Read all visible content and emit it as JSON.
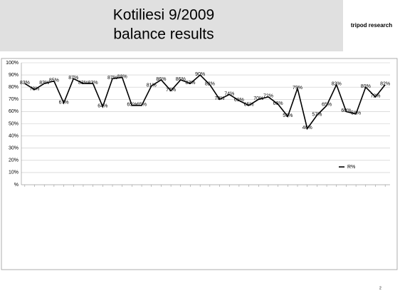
{
  "brand": "tripod research",
  "page_number": "2",
  "chart_data": {
    "type": "line",
    "title": "Kotiliesi 9/2009",
    "subtitle": "balance results",
    "categories": [
      null,
      null,
      null,
      null,
      null,
      null,
      null,
      null,
      null,
      null,
      null,
      null,
      null,
      null,
      null,
      null,
      null,
      null,
      null,
      null,
      null,
      null,
      null,
      null,
      null,
      null,
      null,
      null,
      null,
      null,
      null,
      null,
      null,
      null,
      null,
      null,
      null,
      null
    ],
    "series": [
      {
        "name": "R%",
        "color": "#000000",
        "values": [
          83,
          78,
          83,
          85,
          67,
          87,
          83,
          83,
          64,
          87,
          88,
          65,
          65,
          81,
          86,
          77,
          86,
          83,
          90,
          82,
          70,
          74,
          69,
          65,
          70,
          72,
          66,
          56,
          79,
          46,
          57,
          65,
          82,
          60,
          58,
          80,
          72,
          82
        ],
        "value_labels": [
          "83%",
          "78%",
          "83%",
          "85%",
          "67%",
          "87%",
          "83%",
          "83%",
          "64%",
          "87%",
          "88%",
          "65%",
          "65%",
          "81%",
          "86%",
          "77%",
          "86%",
          "83%",
          "90%",
          "82%",
          "70%",
          "74%",
          "69%",
          "65%",
          "70%",
          "72%",
          "66%",
          "56%",
          "79%",
          "46%",
          "57%",
          "65%",
          "82%",
          "60%",
          "58%",
          "80%",
          "72%",
          "82%"
        ]
      }
    ],
    "ylim": [
      0,
      100
    ],
    "yticks": [
      {
        "value": 0,
        "label": "%"
      },
      {
        "value": 10,
        "label": "10%"
      },
      {
        "value": 20,
        "label": "20%"
      },
      {
        "value": 30,
        "label": "30%"
      },
      {
        "value": 40,
        "label": "40%"
      },
      {
        "value": 50,
        "label": "50%"
      },
      {
        "value": 60,
        "label": "60%"
      },
      {
        "value": 70,
        "label": "70%"
      },
      {
        "value": 80,
        "label": "80%"
      },
      {
        "value": 90,
        "label": "90%"
      },
      {
        "value": 100,
        "label": "100%"
      }
    ],
    "grid": true,
    "legend": "right"
  }
}
